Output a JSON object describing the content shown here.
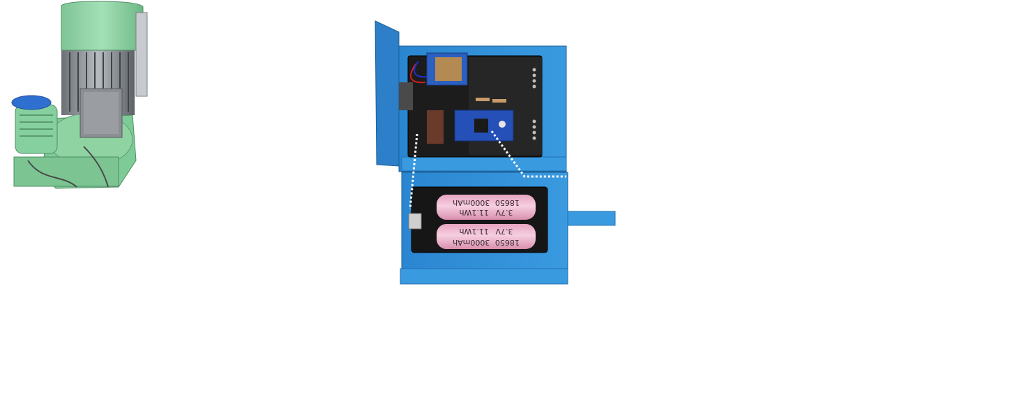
{
  "figure": {
    "motor_photo": {
      "icon": "industrial-motor-photo",
      "colors": {
        "body": "#8fd3a3",
        "cap": "#2f6fcf",
        "junction": "#8b8f93"
      }
    },
    "device_photo": {
      "icon": "sensor-enclosure-photo",
      "colors": {
        "enclosure": "#2f8fd6",
        "pcb": "#1c1c1c",
        "cell_wrap": "#f0b8cf",
        "callout": "#ffffff"
      },
      "battery_cells": [
        {
          "capacity": "3000mAh",
          "model": "18650",
          "voltage": "3.7V",
          "energy": "11.1Wh"
        },
        {
          "capacity": "3000mAh",
          "model": "18650",
          "voltage": "3.7V",
          "energy": "11.1Wh"
        }
      ]
    }
  }
}
